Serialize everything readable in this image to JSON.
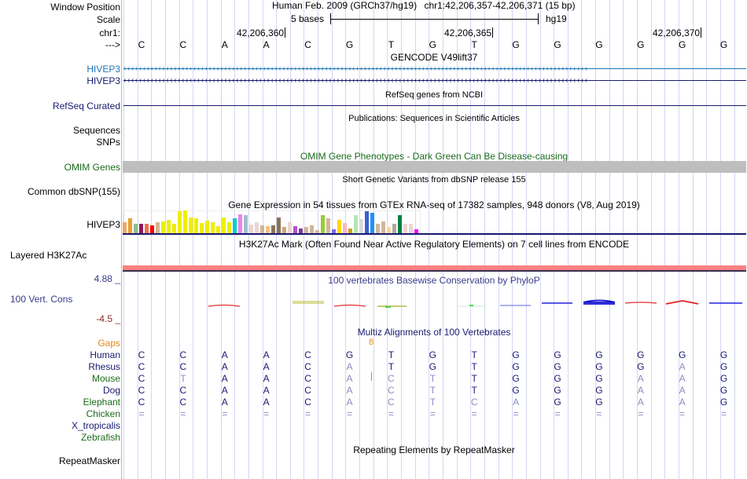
{
  "header": {
    "window_position_label": "Window Position",
    "scale_label": "Scale",
    "chrom_label": "chr1:",
    "strand_label": "--->",
    "assembly_title": "Human Feb. 2009 (GRCh37/hg19)",
    "position": "chr1:42,206,357-42,206,371 (15 bp)",
    "scale_text": "5 bases",
    "scale_db": "hg19",
    "ticks": [
      "42,206,360",
      "42,206,365",
      "42,206,370"
    ],
    "sequence": [
      "C",
      "C",
      "A",
      "A",
      "C",
      "G",
      "T",
      "G",
      "T",
      "G",
      "G",
      "G",
      "G",
      "G",
      "G"
    ]
  },
  "tracks": {
    "gencode": {
      "title": "GENCODE V49lift37",
      "gene1": "HIVEP3",
      "gene2": "HIVEP3",
      "gene1_color": "#1f77b4",
      "gene2_color": "#191970"
    },
    "refseq": {
      "title": "RefSeq genes from NCBI",
      "label": "RefSeq Curated"
    },
    "publications": {
      "title": "Publications: Sequences in Scientific Articles",
      "label1": "Sequences",
      "label2": "SNPs"
    },
    "omim": {
      "title": "OMIM Gene Phenotypes - Dark Green Can Be Disease-causing",
      "label": "OMIM Genes",
      "color": "#1a6b1a"
    },
    "dbsnp": {
      "title": "Short Genetic Variants from dbSNP release 155",
      "label": "Common dbSNP(155)"
    },
    "gtex": {
      "title": "Gene Expression in 54 tissues from GTEx RNA-seq of 17382 samples, 948 donors (V8, Aug 2019)",
      "label": "HIVEP3",
      "bars": [
        {
          "v": 0.5,
          "c": "#f4a460"
        },
        {
          "v": 0.64,
          "c": "#e8a030"
        },
        {
          "v": 0.4,
          "c": "#8fbc8f"
        },
        {
          "v": 0.4,
          "c": "#8b1a5a"
        },
        {
          "v": 0.43,
          "c": "#e8704a"
        },
        {
          "v": 0.33,
          "c": "#ff0000"
        },
        {
          "v": 0.47,
          "c": "#d2b48c"
        },
        {
          "v": 0.51,
          "c": "#eeee00"
        },
        {
          "v": 0.6,
          "c": "#eeee00"
        },
        {
          "v": 0.4,
          "c": "#eeee00"
        },
        {
          "v": 0.98,
          "c": "#eeee00"
        },
        {
          "v": 1.0,
          "c": "#eeee00"
        },
        {
          "v": 0.7,
          "c": "#eeee00"
        },
        {
          "v": 0.66,
          "c": "#eeee00"
        },
        {
          "v": 0.45,
          "c": "#eeee00"
        },
        {
          "v": 0.54,
          "c": "#eeee00"
        },
        {
          "v": 0.47,
          "c": "#eeee00"
        },
        {
          "v": 0.3,
          "c": "#eeee00"
        },
        {
          "v": 0.7,
          "c": "#eeee00"
        },
        {
          "v": 0.47,
          "c": "#eeee00"
        },
        {
          "v": 0.66,
          "c": "#00cdcd"
        },
        {
          "v": 0.84,
          "c": "#ee82ee"
        },
        {
          "v": 0.81,
          "c": "#9fbfcf"
        },
        {
          "v": 0.39,
          "c": "#ebd5d0"
        },
        {
          "v": 0.47,
          "c": "#ebd5d0"
        },
        {
          "v": 0.36,
          "c": "#d2b69c"
        },
        {
          "v": 0.32,
          "c": "#f0c080"
        },
        {
          "v": 0.33,
          "c": "#8b7355"
        },
        {
          "v": 0.68,
          "c": "#8b7355"
        },
        {
          "v": 0.29,
          "c": "#d4a574"
        },
        {
          "v": 0.47,
          "c": "#ebd5d0"
        },
        {
          "v": 0.32,
          "c": "#b452cd"
        },
        {
          "v": 0.22,
          "c": "#7a3b9a"
        },
        {
          "v": 0.26,
          "c": "#d2b69c"
        },
        {
          "v": 0.36,
          "c": "#cdb79e"
        },
        {
          "v": 0.15,
          "c": "#d2b69c"
        },
        {
          "v": 0.79,
          "c": "#9acd32"
        },
        {
          "v": 0.66,
          "c": "#d2b69c"
        },
        {
          "v": 0.18,
          "c": "#7b68ee"
        },
        {
          "v": 0.58,
          "c": "#ffd700"
        },
        {
          "v": 0.45,
          "c": "#ffb6c1"
        },
        {
          "v": 0.22,
          "c": "#d4a020"
        },
        {
          "v": 0.81,
          "c": "#b4e6b4"
        },
        {
          "v": 0.63,
          "c": "#d9d9d9"
        },
        {
          "v": 0.95,
          "c": "#3a5fcd"
        },
        {
          "v": 0.88,
          "c": "#1e90ff"
        },
        {
          "v": 0.4,
          "c": "#d2b69c"
        },
        {
          "v": 0.52,
          "c": "#d2b69c"
        },
        {
          "v": 0.26,
          "c": "#ffd39b"
        },
        {
          "v": 0.42,
          "c": "#a9a9a9"
        },
        {
          "v": 0.8,
          "c": "#008040"
        },
        {
          "v": 0.42,
          "c": "#ebd5d0"
        },
        {
          "v": 0.42,
          "c": "#ebd5d0"
        },
        {
          "v": 0.18,
          "c": "#ff00ff"
        }
      ]
    },
    "h3k27ac": {
      "title": "H3K27Ac Mark (Often Found Near Active Regulatory Elements) on 7 cell lines from ENCODE",
      "label": "Layered H3K27Ac"
    },
    "phylop": {
      "title": "100 vertebrates Basewise Conservation by PhyloP",
      "label": "100 Vert. Cons",
      "max": "4.88 _",
      "min": "-4.5 _"
    },
    "multiz": {
      "title": "Multiz Alignments of 100 Vertebrates",
      "gaps_label": "Gaps",
      "gap_count": "8",
      "species": [
        {
          "name": "Human",
          "color": "#191970",
          "bases": [
            "C",
            "C",
            "A",
            "A",
            "C",
            "G",
            "T",
            "G",
            "T",
            "G",
            "G",
            "G",
            "G",
            "G",
            "G"
          ],
          "dim": [
            0,
            0,
            0,
            0,
            0,
            0,
            0,
            0,
            0,
            0,
            0,
            0,
            0,
            0,
            0
          ]
        },
        {
          "name": "Rhesus",
          "color": "#191970",
          "bases": [
            "C",
            "C",
            "A",
            "A",
            "C",
            "A",
            "T",
            "G",
            "T",
            "G",
            "G",
            "G",
            "G",
            "A",
            "G"
          ],
          "dim": [
            0,
            0,
            0,
            0,
            0,
            1,
            0,
            0,
            0,
            0,
            0,
            0,
            0,
            1,
            0
          ]
        },
        {
          "name": "Mouse",
          "color": "#1a6b1a",
          "bases": [
            "C",
            "T",
            "A",
            "A",
            "C",
            "A",
            "C",
            "T",
            "T",
            "G",
            "G",
            "G",
            "A",
            "A",
            "G"
          ],
          "dim": [
            0,
            1,
            0,
            0,
            0,
            1,
            1,
            1,
            0,
            0,
            0,
            0,
            1,
            1,
            0
          ]
        },
        {
          "name": "Dog",
          "color": "#191970",
          "bases": [
            "C",
            "C",
            "A",
            "A",
            "C",
            "A",
            "C",
            "T",
            "T",
            "G",
            "G",
            "G",
            "A",
            "A",
            "G"
          ],
          "dim": [
            0,
            0,
            0,
            0,
            0,
            1,
            1,
            1,
            0,
            0,
            0,
            0,
            1,
            1,
            0
          ]
        },
        {
          "name": "Elephant",
          "color": "#1a6b1a",
          "bases": [
            "C",
            "C",
            "A",
            "A",
            "C",
            "A",
            "C",
            "T",
            "C",
            "A",
            "G",
            "G",
            "A",
            "A",
            "G"
          ],
          "dim": [
            0,
            0,
            0,
            0,
            0,
            1,
            1,
            1,
            1,
            1,
            0,
            0,
            1,
            1,
            0
          ]
        },
        {
          "name": "Chicken",
          "color": "#1a6b1a",
          "bases": [
            "=",
            "=",
            "=",
            "=",
            "=",
            "=",
            "=",
            "=",
            "=",
            "=",
            "=",
            "=",
            "=",
            "=",
            "="
          ],
          "dim": [
            1,
            1,
            1,
            1,
            1,
            1,
            1,
            1,
            1,
            1,
            1,
            1,
            1,
            1,
            1
          ]
        },
        {
          "name": "X_tropicalis",
          "color": "#191970",
          "bases": [],
          "dim": []
        },
        {
          "name": "Zebrafish",
          "color": "#1a6b1a",
          "bases": [],
          "dim": []
        }
      ]
    },
    "repeatmasker": {
      "title": "Repeating Elements by RepeatMasker",
      "label": "RepeatMasker"
    }
  }
}
